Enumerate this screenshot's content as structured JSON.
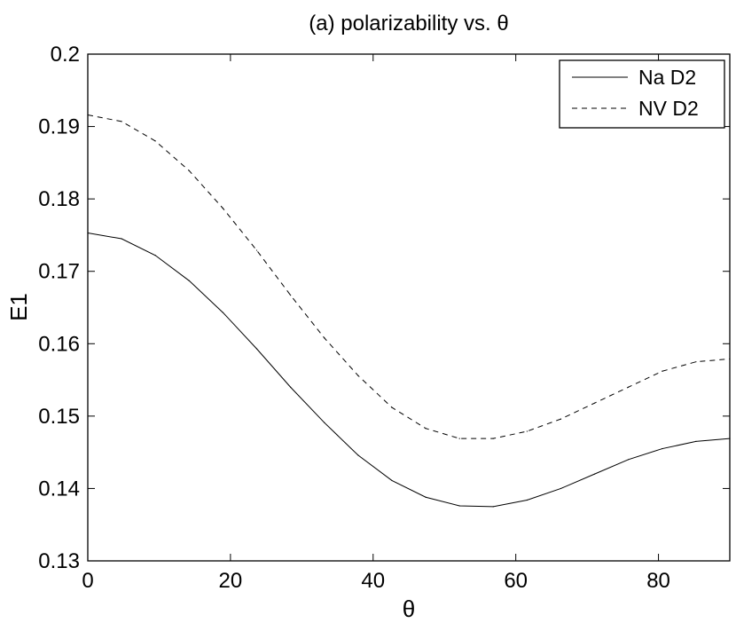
{
  "chart_data": {
    "type": "line",
    "title": "(a) polarizability vs. θ",
    "xlabel": "θ",
    "ylabel": "E1",
    "xlim": [
      0,
      90
    ],
    "ylim": [
      0.13,
      0.2
    ],
    "x_ticks": [
      "0",
      "20",
      "40",
      "60",
      "80"
    ],
    "y_ticks": [
      "0.13",
      "0.14",
      "0.15",
      "0.16",
      "0.17",
      "0.18",
      "0.19",
      "0.2"
    ],
    "grid": false,
    "legend_position": "top-right",
    "x": [
      0,
      4.74,
      9.47,
      14.21,
      18.95,
      23.68,
      28.42,
      33.16,
      37.89,
      42.63,
      47.37,
      52.11,
      56.84,
      61.58,
      66.32,
      71.05,
      75.79,
      80.53,
      85.26,
      90
    ],
    "series": [
      {
        "name": "Na D2",
        "style": "solid",
        "color": "#000000",
        "values": [
          0.1753,
          0.1745,
          0.1722,
          0.1687,
          0.1643,
          0.1593,
          0.154,
          0.1491,
          0.1446,
          0.1411,
          0.1388,
          0.1376,
          0.1375,
          0.1384,
          0.14,
          0.142,
          0.144,
          0.1455,
          0.1465,
          0.1469
        ]
      },
      {
        "name": "NV D2",
        "style": "dashed",
        "color": "#000000",
        "values": [
          0.1916,
          0.1907,
          0.188,
          0.1839,
          0.1787,
          0.1729,
          0.1667,
          0.1608,
          0.1556,
          0.1512,
          0.1483,
          0.1469,
          0.1469,
          0.1479,
          0.1496,
          0.1518,
          0.154,
          0.1562,
          0.1575,
          0.1579
        ]
      }
    ]
  }
}
